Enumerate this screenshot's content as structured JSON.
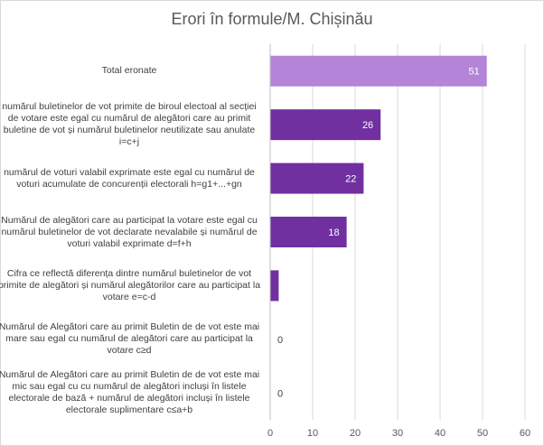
{
  "chart_data": {
    "type": "bar",
    "orientation": "horizontal",
    "title": "Erori în formule/M. Chișinău",
    "categories": [
      "Total eronate",
      "numărul buletinelor de vot primite de biroul electoal al secției de votare este egal cu numărul de alegători care au primit buletine de vot și numărul buletinelor neutilizate sau anulate i=c+j",
      "numărul de voturi valabil exprimate este egal cu numărul de voturi acumulate de concurenții electorali h=g1+...+gn",
      "Numărul de alegători care au participat la votare este egal cu numărul buletinelor de vot declarate nevalabile și numărul de voturi valabil exprimate d=f+h",
      "Cifra ce reflectă diferența dintre numărul buletinelor de vot primite de alegători și numărul alegătorilor care au participat la votare e=c-d",
      "Numărul de Alegători care au primit Buletin de de vot este mai mare sau egal cu numărul de alegători care au participat la votare c≥d",
      "Numărul de Alegători care au primit Buletin de de vot este mai mic sau egal cu cu numărul de alegători incluși în listele electorale de bază + numărul de alegători incluși în listele electorale suplimentare c≤a+b"
    ],
    "values": [
      51,
      26,
      22,
      18,
      2,
      0,
      0
    ],
    "data_labels": [
      "51",
      "26",
      "22",
      "18",
      "",
      "0",
      "0"
    ],
    "xlim": [
      0,
      60
    ],
    "xticks": [
      0,
      10,
      20,
      30,
      40,
      50,
      60
    ],
    "xtick_labels": [
      "0",
      "10",
      "20",
      "30",
      "40",
      "50",
      "60"
    ],
    "colors": [
      "#b484d9",
      "#7030a0",
      "#7030a0",
      "#7030a0",
      "#7030a0",
      "#7030a0",
      "#7030a0"
    ],
    "grid": "vertical",
    "legend": "none"
  }
}
